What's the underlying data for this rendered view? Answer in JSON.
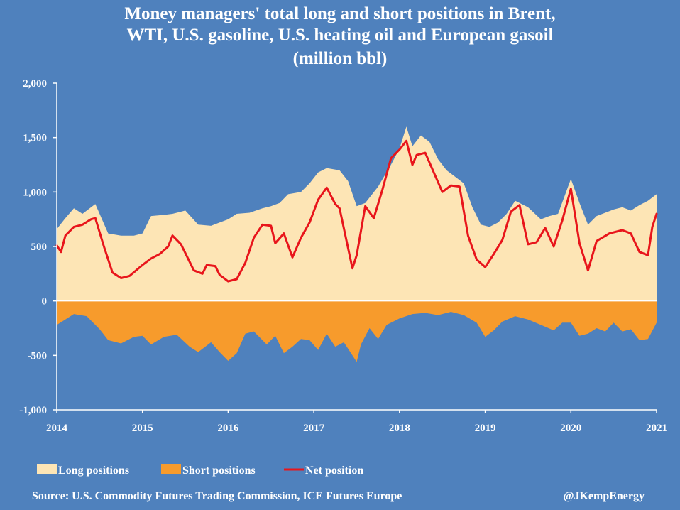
{
  "chart_data": {
    "type": "area",
    "title_lines": [
      "Money managers' total long and short positions in Brent,",
      "WTI, U.S. gasoline, U.S. heating oil and European gasoil",
      "(million bbl)"
    ],
    "xlim": [
      2014,
      2021
    ],
    "ylim": [
      -1000,
      2000
    ],
    "x_ticks": [
      "2014",
      "2015",
      "2016",
      "2017",
      "2018",
      "2019",
      "2020",
      "2021"
    ],
    "y_ticks": [
      "2,000",
      "1,500",
      "1,000",
      "500",
      "0",
      "-500",
      "-1,000"
    ],
    "grid": false,
    "legend_position": "bottom",
    "series": [
      {
        "name": "Long positions",
        "kind": "area",
        "color": "#fde5b5",
        "x": [
          2014.0,
          2014.1,
          2014.2,
          2014.3,
          2014.45,
          2014.6,
          2014.75,
          2014.9,
          2015.0,
          2015.1,
          2015.25,
          2015.35,
          2015.5,
          2015.65,
          2015.8,
          2015.9,
          2016.0,
          2016.1,
          2016.25,
          2016.4,
          2016.5,
          2016.6,
          2016.7,
          2016.85,
          2016.95,
          2017.05,
          2017.15,
          2017.3,
          2017.4,
          2017.5,
          2017.6,
          2017.75,
          2017.9,
          2018.0,
          2018.08,
          2018.15,
          2018.25,
          2018.35,
          2018.45,
          2018.55,
          2018.65,
          2018.75,
          2018.85,
          2018.95,
          2019.05,
          2019.15,
          2019.25,
          2019.35,
          2019.5,
          2019.65,
          2019.75,
          2019.85,
          2020.0,
          2020.1,
          2020.2,
          2020.3,
          2020.4,
          2020.5,
          2020.6,
          2020.7,
          2020.8,
          2020.9,
          2021.0
        ],
        "values": [
          660,
          760,
          850,
          800,
          890,
          620,
          600,
          600,
          620,
          780,
          790,
          800,
          830,
          700,
          690,
          720,
          750,
          800,
          810,
          850,
          870,
          900,
          980,
          1000,
          1080,
          1180,
          1220,
          1200,
          1100,
          870,
          900,
          1050,
          1250,
          1400,
          1600,
          1420,
          1520,
          1460,
          1300,
          1200,
          1140,
          1080,
          860,
          700,
          680,
          720,
          800,
          920,
          860,
          750,
          780,
          800,
          1120,
          900,
          700,
          780,
          810,
          840,
          860,
          830,
          880,
          920,
          980
        ]
      },
      {
        "name": "Short positions",
        "kind": "area",
        "color": "#f79b2c",
        "x": [
          2014.0,
          2014.1,
          2014.2,
          2014.35,
          2014.5,
          2014.6,
          2014.75,
          2014.9,
          2015.0,
          2015.1,
          2015.25,
          2015.4,
          2015.55,
          2015.65,
          2015.8,
          2015.9,
          2016.0,
          2016.1,
          2016.2,
          2016.3,
          2016.45,
          2016.55,
          2016.65,
          2016.75,
          2016.85,
          2016.95,
          2017.05,
          2017.15,
          2017.25,
          2017.35,
          2017.45,
          2017.5,
          2017.55,
          2017.65,
          2017.75,
          2017.85,
          2018.0,
          2018.15,
          2018.3,
          2018.45,
          2018.6,
          2018.75,
          2018.9,
          2019.0,
          2019.1,
          2019.2,
          2019.35,
          2019.5,
          2019.65,
          2019.8,
          2019.9,
          2020.0,
          2020.1,
          2020.2,
          2020.3,
          2020.4,
          2020.5,
          2020.6,
          2020.7,
          2020.8,
          2020.9,
          2021.0
        ],
        "values": [
          -220,
          -170,
          -120,
          -140,
          -260,
          -360,
          -390,
          -330,
          -320,
          -400,
          -330,
          -310,
          -420,
          -470,
          -380,
          -470,
          -550,
          -480,
          -300,
          -280,
          -400,
          -320,
          -480,
          -420,
          -350,
          -360,
          -450,
          -300,
          -420,
          -380,
          -500,
          -560,
          -400,
          -250,
          -350,
          -220,
          -160,
          -120,
          -110,
          -130,
          -100,
          -130,
          -200,
          -330,
          -270,
          -190,
          -140,
          -170,
          -220,
          -270,
          -200,
          -200,
          -320,
          -300,
          -250,
          -280,
          -200,
          -280,
          -260,
          -360,
          -350,
          -200
        ]
      },
      {
        "name": "Net position",
        "kind": "line",
        "color": "#e8151b",
        "x": [
          2014.0,
          2014.05,
          2014.1,
          2014.2,
          2014.3,
          2014.4,
          2014.45,
          2014.55,
          2014.65,
          2014.75,
          2014.85,
          2015.0,
          2015.1,
          2015.2,
          2015.3,
          2015.35,
          2015.45,
          2015.6,
          2015.7,
          2015.75,
          2015.85,
          2015.9,
          2016.0,
          2016.1,
          2016.2,
          2016.3,
          2016.4,
          2016.5,
          2016.55,
          2016.65,
          2016.75,
          2016.85,
          2016.95,
          2017.05,
          2017.15,
          2017.25,
          2017.3,
          2017.45,
          2017.5,
          2017.6,
          2017.7,
          2017.8,
          2017.9,
          2018.0,
          2018.08,
          2018.15,
          2018.2,
          2018.3,
          2018.4,
          2018.5,
          2018.6,
          2018.7,
          2018.8,
          2018.9,
          2019.0,
          2019.1,
          2019.2,
          2019.3,
          2019.4,
          2019.5,
          2019.6,
          2019.7,
          2019.8,
          2019.9,
          2020.0,
          2020.1,
          2020.2,
          2020.3,
          2020.45,
          2020.6,
          2020.7,
          2020.8,
          2020.9,
          2020.95,
          2021.0
        ],
        "values": [
          510,
          450,
          600,
          680,
          700,
          750,
          760,
          500,
          260,
          210,
          230,
          330,
          390,
          430,
          500,
          600,
          520,
          280,
          250,
          330,
          320,
          240,
          180,
          200,
          350,
          580,
          700,
          690,
          530,
          620,
          400,
          580,
          720,
          930,
          1040,
          890,
          850,
          300,
          420,
          870,
          760,
          1020,
          1310,
          1390,
          1470,
          1250,
          1340,
          1360,
          1180,
          1000,
          1060,
          1050,
          600,
          380,
          310,
          430,
          560,
          820,
          880,
          520,
          540,
          670,
          500,
          740,
          1030,
          530,
          280,
          550,
          620,
          650,
          620,
          450,
          420,
          680,
          800
        ]
      }
    ]
  },
  "legend": [
    {
      "label": "Long positions",
      "swatch": "area",
      "color": "#fde5b5"
    },
    {
      "label": "Short positions",
      "swatch": "area",
      "color": "#f79b2c"
    },
    {
      "label": "Net position",
      "swatch": "line",
      "color": "#e8151b"
    }
  ],
  "footer": {
    "source": "Source: U.S. Commodity Futures Trading Commission, ICE Futures Europe",
    "handle": "@JKempEnergy"
  },
  "colors": {
    "background": "#4f81bd",
    "plot_area": "#4f81bd",
    "axis": "#ffffff"
  }
}
